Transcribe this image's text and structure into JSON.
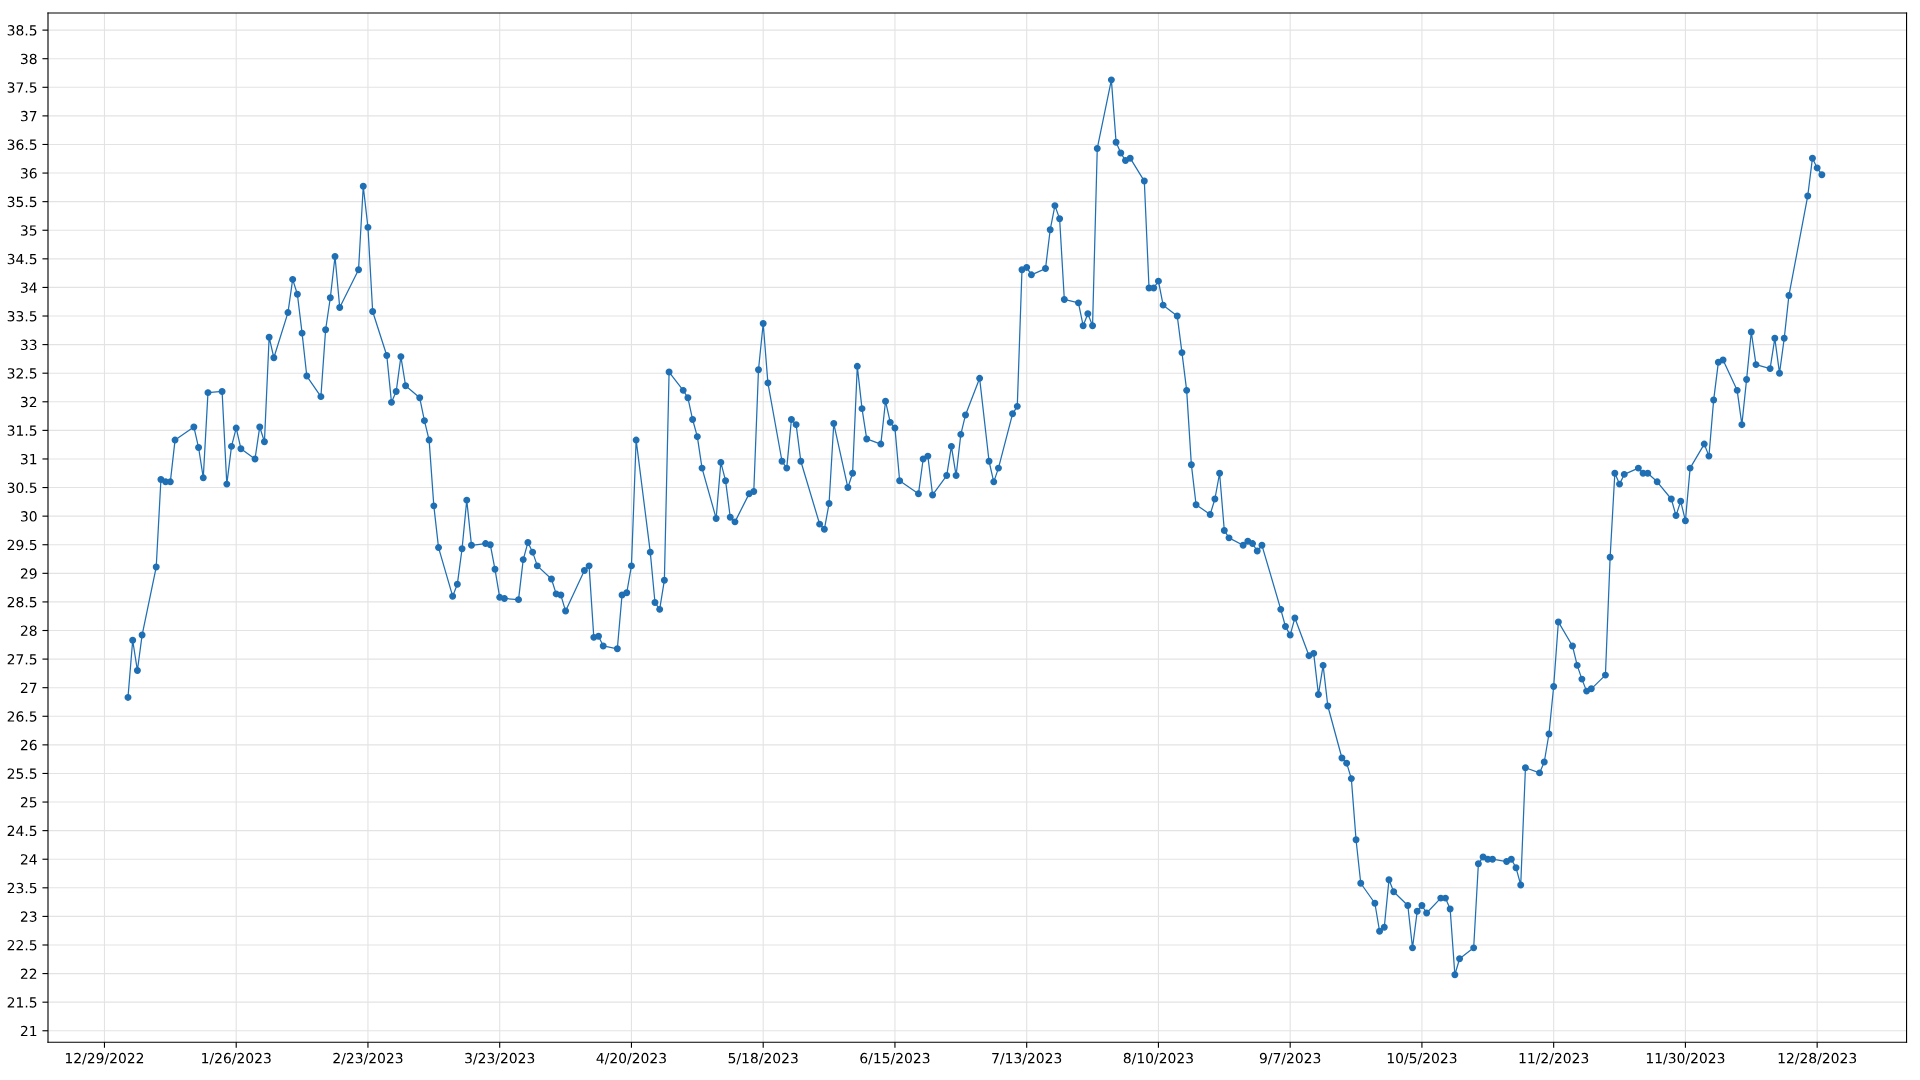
{
  "chart_data": {
    "type": "line",
    "marker": "circle",
    "line_style": "solid",
    "grid": true,
    "xlim": [
      "2022-12-17",
      "2024-01-16"
    ],
    "xticks": [
      {
        "value": "2022-12-29",
        "label": "12/29/2022"
      },
      {
        "value": "2023-01-26",
        "label": "1/26/2023"
      },
      {
        "value": "2023-02-23",
        "label": "2/23/2023"
      },
      {
        "value": "2023-03-23",
        "label": "3/23/2023"
      },
      {
        "value": "2023-04-20",
        "label": "4/20/2023"
      },
      {
        "value": "2023-05-18",
        "label": "5/18/2023"
      },
      {
        "value": "2023-06-15",
        "label": "6/15/2023"
      },
      {
        "value": "2023-07-13",
        "label": "7/13/2023"
      },
      {
        "value": "2023-08-10",
        "label": "8/10/2023"
      },
      {
        "value": "2023-09-07",
        "label": "9/7/2023"
      },
      {
        "value": "2023-10-05",
        "label": "10/5/2023"
      },
      {
        "value": "2023-11-02",
        "label": "11/2/2023"
      },
      {
        "value": "2023-11-30",
        "label": "11/30/2023"
      },
      {
        "value": "2023-12-28",
        "label": "12/28/2023"
      }
    ],
    "ylim": [
      20.8,
      38.8
    ],
    "yticks": [
      21,
      21.5,
      22,
      22.5,
      23,
      23.5,
      24,
      24.5,
      25,
      25.5,
      26,
      26.5,
      27,
      27.5,
      28,
      28.5,
      29,
      29.5,
      30,
      30.5,
      31,
      31.5,
      32,
      32.5,
      33,
      33.5,
      34,
      34.5,
      35,
      35.5,
      36,
      36.5,
      37,
      37.5,
      38,
      38.5
    ],
    "series": [
      {
        "color": "#1f6fb4",
        "x": [
          "2023-01-03",
          "2023-01-04",
          "2023-01-05",
          "2023-01-06",
          "2023-01-09",
          "2023-01-10",
          "2023-01-11",
          "2023-01-12",
          "2023-01-13",
          "2023-01-17",
          "2023-01-18",
          "2023-01-19",
          "2023-01-20",
          "2023-01-23",
          "2023-01-24",
          "2023-01-25",
          "2023-01-26",
          "2023-01-27",
          "2023-01-30",
          "2023-01-31",
          "2023-02-01",
          "2023-02-02",
          "2023-02-03",
          "2023-02-06",
          "2023-02-07",
          "2023-02-08",
          "2023-02-09",
          "2023-02-10",
          "2023-02-13",
          "2023-02-14",
          "2023-02-15",
          "2023-02-16",
          "2023-02-17",
          "2023-02-21",
          "2023-02-22",
          "2023-02-23",
          "2023-02-24",
          "2023-02-27",
          "2023-02-28",
          "2023-03-01",
          "2023-03-02",
          "2023-03-03",
          "2023-03-06",
          "2023-03-07",
          "2023-03-08",
          "2023-03-09",
          "2023-03-10",
          "2023-03-13",
          "2023-03-14",
          "2023-03-15",
          "2023-03-16",
          "2023-03-17",
          "2023-03-20",
          "2023-03-21",
          "2023-03-22",
          "2023-03-23",
          "2023-03-24",
          "2023-03-27",
          "2023-03-28",
          "2023-03-29",
          "2023-03-30",
          "2023-03-31",
          "2023-04-03",
          "2023-04-04",
          "2023-04-05",
          "2023-04-06",
          "2023-04-10",
          "2023-04-11",
          "2023-04-12",
          "2023-04-13",
          "2023-04-14",
          "2023-04-17",
          "2023-04-18",
          "2023-04-19",
          "2023-04-20",
          "2023-04-21",
          "2023-04-24",
          "2023-04-25",
          "2023-04-26",
          "2023-04-27",
          "2023-04-28",
          "2023-05-01",
          "2023-05-02",
          "2023-05-03",
          "2023-05-04",
          "2023-05-05",
          "2023-05-08",
          "2023-05-09",
          "2023-05-10",
          "2023-05-11",
          "2023-05-12",
          "2023-05-15",
          "2023-05-16",
          "2023-05-17",
          "2023-05-18",
          "2023-05-19",
          "2023-05-22",
          "2023-05-23",
          "2023-05-24",
          "2023-05-25",
          "2023-05-26",
          "2023-05-30",
          "2023-05-31",
          "2023-06-01",
          "2023-06-02",
          "2023-06-05",
          "2023-06-06",
          "2023-06-07",
          "2023-06-08",
          "2023-06-09",
          "2023-06-12",
          "2023-06-13",
          "2023-06-14",
          "2023-06-15",
          "2023-06-16",
          "2023-06-20",
          "2023-06-21",
          "2023-06-22",
          "2023-06-23",
          "2023-06-26",
          "2023-06-27",
          "2023-06-28",
          "2023-06-29",
          "2023-06-30",
          "2023-07-03",
          "2023-07-05",
          "2023-07-06",
          "2023-07-07",
          "2023-07-10",
          "2023-07-11",
          "2023-07-12",
          "2023-07-13",
          "2023-07-14",
          "2023-07-17",
          "2023-07-18",
          "2023-07-19",
          "2023-07-20",
          "2023-07-21",
          "2023-07-24",
          "2023-07-25",
          "2023-07-26",
          "2023-07-27",
          "2023-07-28",
          "2023-07-31",
          "2023-08-01",
          "2023-08-02",
          "2023-08-03",
          "2023-08-04",
          "2023-08-07",
          "2023-08-08",
          "2023-08-09",
          "2023-08-10",
          "2023-08-11",
          "2023-08-14",
          "2023-08-15",
          "2023-08-16",
          "2023-08-17",
          "2023-08-18",
          "2023-08-21",
          "2023-08-22",
          "2023-08-23",
          "2023-08-24",
          "2023-08-25",
          "2023-08-28",
          "2023-08-29",
          "2023-08-30",
          "2023-08-31",
          "2023-09-01",
          "2023-09-05",
          "2023-09-06",
          "2023-09-07",
          "2023-09-08",
          "2023-09-11",
          "2023-09-12",
          "2023-09-13",
          "2023-09-14",
          "2023-09-15",
          "2023-09-18",
          "2023-09-19",
          "2023-09-20",
          "2023-09-21",
          "2023-09-22",
          "2023-09-25",
          "2023-09-26",
          "2023-09-27",
          "2023-09-28",
          "2023-09-29",
          "2023-10-02",
          "2023-10-03",
          "2023-10-04",
          "2023-10-05",
          "2023-10-06",
          "2023-10-09",
          "2023-10-10",
          "2023-10-11",
          "2023-10-12",
          "2023-10-13",
          "2023-10-16",
          "2023-10-17",
          "2023-10-18",
          "2023-10-19",
          "2023-10-20",
          "2023-10-23",
          "2023-10-24",
          "2023-10-25",
          "2023-10-26",
          "2023-10-27",
          "2023-10-30",
          "2023-10-31",
          "2023-11-01",
          "2023-11-02",
          "2023-11-03",
          "2023-11-06",
          "2023-11-07",
          "2023-11-08",
          "2023-11-09",
          "2023-11-10",
          "2023-11-13",
          "2023-11-14",
          "2023-11-15",
          "2023-11-16",
          "2023-11-17",
          "2023-11-20",
          "2023-11-21",
          "2023-11-22",
          "2023-11-24",
          "2023-11-27",
          "2023-11-28",
          "2023-11-29",
          "2023-11-30",
          "2023-12-01",
          "2023-12-04",
          "2023-12-05",
          "2023-12-06",
          "2023-12-07",
          "2023-12-08",
          "2023-12-11",
          "2023-12-12",
          "2023-12-13",
          "2023-12-14",
          "2023-12-15",
          "2023-12-18",
          "2023-12-19",
          "2023-12-20",
          "2023-12-21",
          "2023-12-22",
          "2023-12-26",
          "2023-12-27",
          "2023-12-28",
          "2023-12-29"
        ],
        "values": [
          26.83,
          27.83,
          27.3,
          27.92,
          29.11,
          30.64,
          30.6,
          30.6,
          31.33,
          31.56,
          31.2,
          30.67,
          32.16,
          32.18,
          30.56,
          31.22,
          31.54,
          31.18,
          31.0,
          31.56,
          31.3,
          33.13,
          32.77,
          33.56,
          34.14,
          33.88,
          33.2,
          32.45,
          32.09,
          33.26,
          33.82,
          34.54,
          33.65,
          34.31,
          35.77,
          35.05,
          33.58,
          32.81,
          31.99,
          32.18,
          32.79,
          32.28,
          32.07,
          31.67,
          31.33,
          30.18,
          29.45,
          28.6,
          28.81,
          29.43,
          30.28,
          29.49,
          29.52,
          29.5,
          29.07,
          28.58,
          28.56,
          28.54,
          29.24,
          29.54,
          29.37,
          29.13,
          28.9,
          28.64,
          28.62,
          28.34,
          29.05,
          29.13,
          27.88,
          27.9,
          27.73,
          27.68,
          28.62,
          28.66,
          29.13,
          31.33,
          29.37,
          28.49,
          28.37,
          28.88,
          32.52,
          32.2,
          32.07,
          31.69,
          31.39,
          30.84,
          29.96,
          30.94,
          30.62,
          29.98,
          29.9,
          30.39,
          30.43,
          32.56,
          33.37,
          32.33,
          30.96,
          30.84,
          31.69,
          31.6,
          30.96,
          29.86,
          29.77,
          30.22,
          31.62,
          30.5,
          30.75,
          32.62,
          31.88,
          31.35,
          31.26,
          32.01,
          31.64,
          31.54,
          30.62,
          30.39,
          31.0,
          31.05,
          30.37,
          30.71,
          31.22,
          30.71,
          31.43,
          31.77,
          32.41,
          30.96,
          30.6,
          30.84,
          31.79,
          31.92,
          34.31,
          34.35,
          34.22,
          34.33,
          35.01,
          35.43,
          35.2,
          33.79,
          33.73,
          33.33,
          33.54,
          33.33,
          36.43,
          37.63,
          36.54,
          36.35,
          36.22,
          36.26,
          35.86,
          33.99,
          33.99,
          34.11,
          33.69,
          33.5,
          32.86,
          32.2,
          30.9,
          30.2,
          30.03,
          30.3,
          30.75,
          29.75,
          29.62,
          29.49,
          29.56,
          29.52,
          29.39,
          29.49,
          28.37,
          28.07,
          27.92,
          28.22,
          27.56,
          27.6,
          26.88,
          27.39,
          26.68,
          25.77,
          25.68,
          25.41,
          24.34,
          23.58,
          23.23,
          22.74,
          22.81,
          23.64,
          23.43,
          23.19,
          22.45,
          23.09,
          23.19,
          23.06,
          23.32,
          23.32,
          23.13,
          21.98,
          22.26,
          22.45,
          23.92,
          24.04,
          24.0,
          24.0,
          23.96,
          24.0,
          23.85,
          23.55,
          25.6,
          25.51,
          25.7,
          26.19,
          27.02,
          28.15,
          27.73,
          27.39,
          27.15,
          26.94,
          26.98,
          27.22,
          29.28,
          30.75,
          30.56,
          30.73,
          30.84,
          30.75,
          30.75,
          30.6,
          30.3,
          30.01,
          30.26,
          29.92,
          30.84,
          31.26,
          31.05,
          32.03,
          32.69,
          32.73,
          32.2,
          31.6,
          32.39,
          33.22,
          32.65,
          32.58,
          33.11,
          32.5,
          33.11,
          33.86,
          35.6,
          36.26,
          36.09,
          35.97
        ]
      }
    ]
  }
}
